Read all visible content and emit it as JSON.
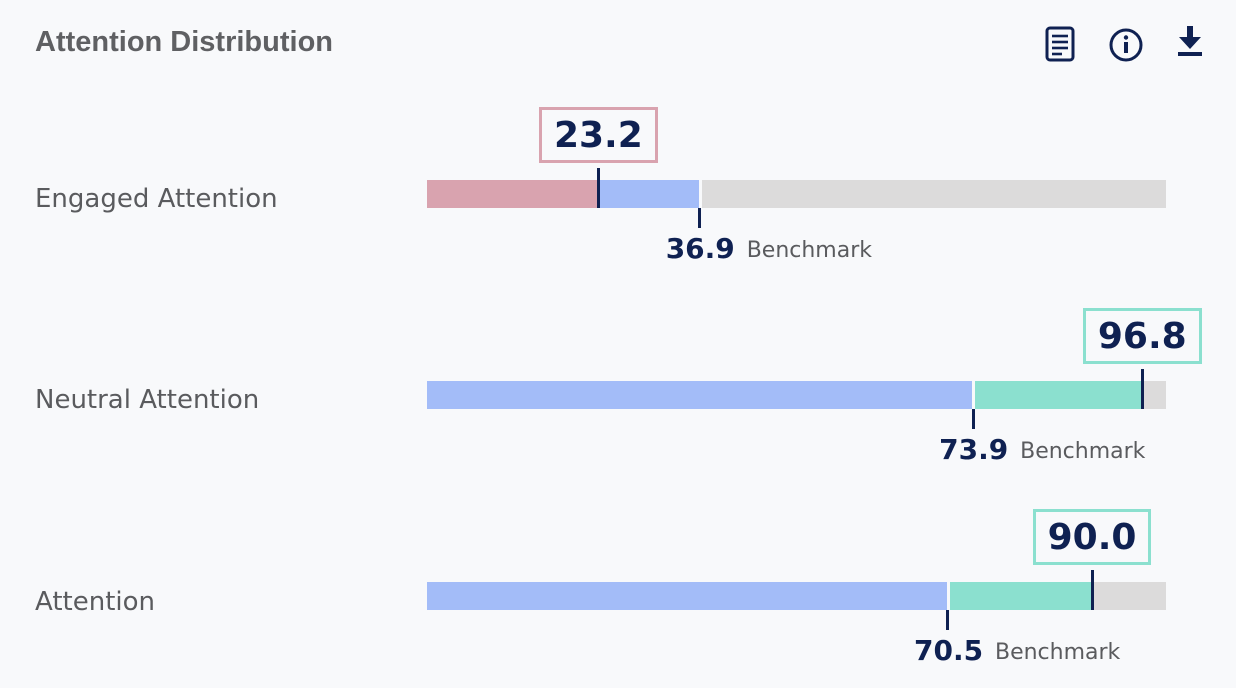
{
  "header": {
    "title": "Attention Distribution",
    "icons": [
      "document-icon",
      "info-icon",
      "download-icon"
    ]
  },
  "colors": {
    "below_benchmark": "#d9a3af",
    "within_benchmark": "#a3bcf8",
    "above_benchmark": "#8be0cf",
    "track": "#dcdbdb",
    "marker": "#0f2152"
  },
  "chart_data": {
    "type": "bar",
    "subtype": "bullet",
    "title": "Attention Distribution",
    "xlim": [
      0,
      100
    ],
    "benchmark_label": "Benchmark",
    "rows": [
      {
        "label": "Engaged Attention",
        "score": 23.2,
        "score_text": "23.2",
        "benchmark": 36.9,
        "benchmark_text": "36.9"
      },
      {
        "label": "Neutral Attention",
        "score": 96.8,
        "score_text": "96.8",
        "benchmark": 73.9,
        "benchmark_text": "73.9"
      },
      {
        "label": "Attention",
        "score": 90.0,
        "score_text": "90.0",
        "benchmark": 70.5,
        "benchmark_text": "70.5"
      }
    ]
  }
}
